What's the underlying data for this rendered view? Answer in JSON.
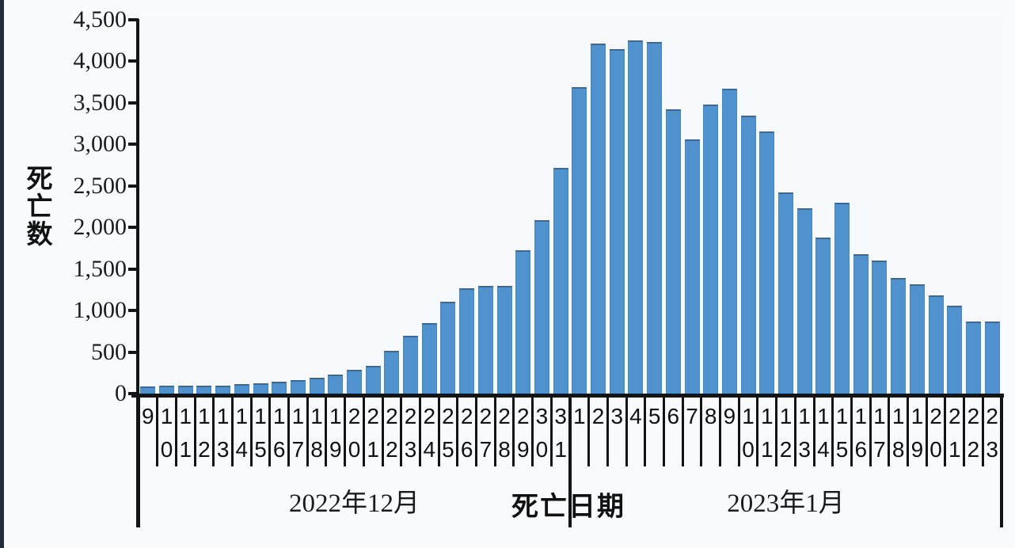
{
  "chart_data": {
    "type": "bar",
    "title": "",
    "ylabel": "死亡数",
    "xlabel": "死亡日期",
    "ylim": [
      0,
      4500
    ],
    "ytick_interval": 500,
    "ytick_labels": [
      "0",
      "500",
      "1,000",
      "1,500",
      "2,000",
      "2,500",
      "3,000",
      "3,500",
      "4,000",
      "4,500"
    ],
    "grid": false,
    "legend": false,
    "bar_color": "#4f92ce",
    "bar_border_color": "#38699c",
    "axis_color": "#141414",
    "groups": [
      {
        "label": "2022年12月",
        "categories": [
          "9",
          "10",
          "11",
          "12",
          "13",
          "14",
          "15",
          "16",
          "17",
          "18",
          "19",
          "20",
          "21",
          "22",
          "23",
          "24",
          "25",
          "26",
          "27",
          "28",
          "29",
          "30",
          "31"
        ],
        "values": [
          90,
          95,
          100,
          100,
          100,
          110,
          125,
          145,
          165,
          195,
          230,
          285,
          330,
          515,
          700,
          845,
          1110,
          1265,
          1295,
          1295,
          1730,
          2090,
          2720
        ]
      },
      {
        "label": "2023年1月",
        "categories": [
          "1",
          "2",
          "3",
          "4",
          "5",
          "6",
          "7",
          "8",
          "9",
          "10",
          "11",
          "12",
          "13",
          "14",
          "15",
          "16",
          "17",
          "18",
          "19",
          "20",
          "21",
          "22",
          "23"
        ],
        "values": [
          3690,
          4210,
          4145,
          4250,
          4230,
          3420,
          3060,
          3480,
          3670,
          3350,
          3155,
          2425,
          2230,
          1875,
          2295,
          1675,
          1605,
          1390,
          1315,
          1185,
          1055,
          870,
          870
        ]
      }
    ]
  }
}
